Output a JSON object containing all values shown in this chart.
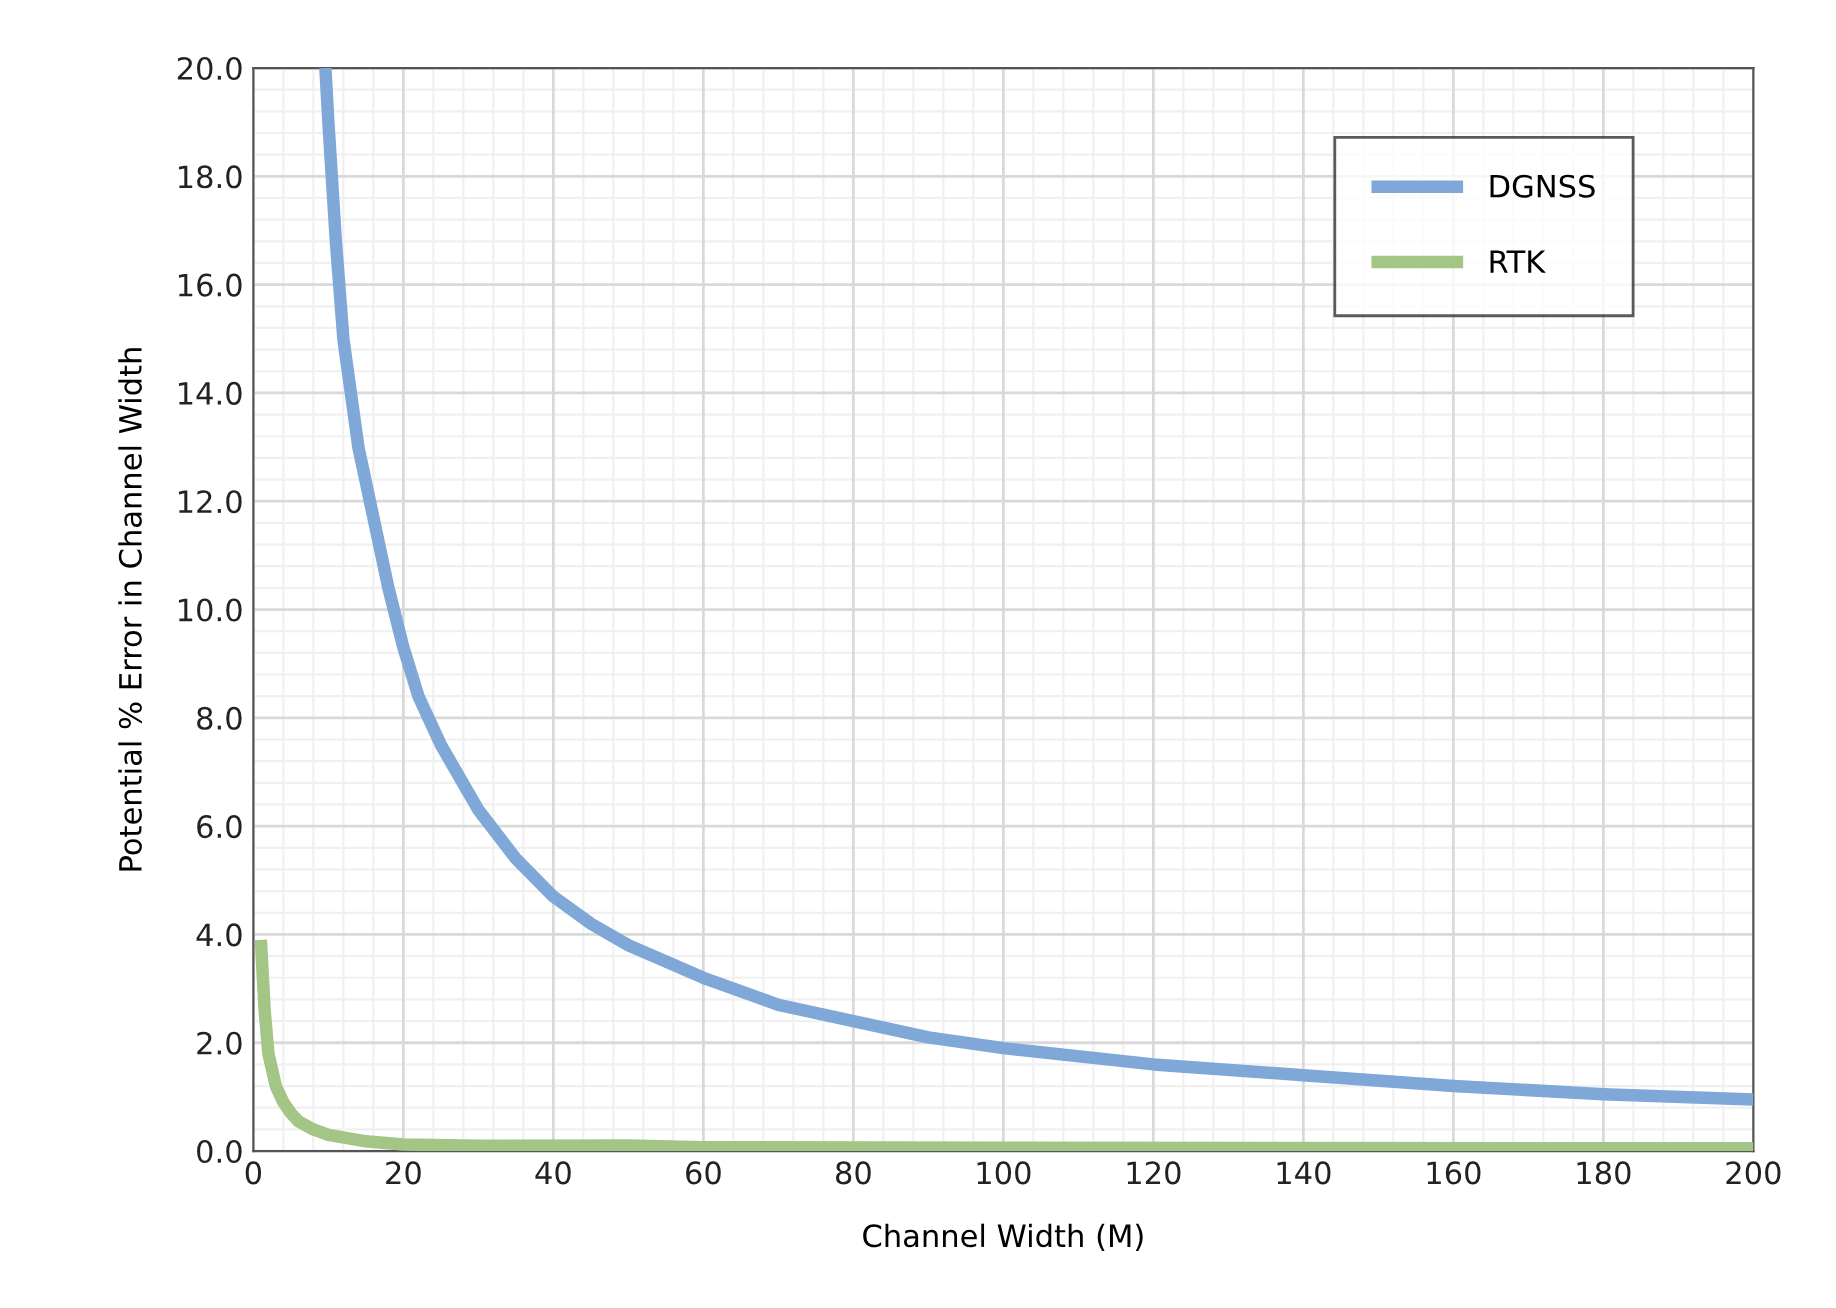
{
  "chart_data": {
    "type": "line",
    "xlabel": "Channel Width (M)",
    "ylabel": "Potential % Error in Channel Width",
    "xlim": [
      0,
      200
    ],
    "xticks": [
      0,
      20,
      40,
      60,
      80,
      100,
      120,
      140,
      160,
      180,
      200
    ],
    "ylim": [
      0,
      20
    ],
    "yticks": [
      {
        "value": 0,
        "label": "0.0"
      },
      {
        "value": 2,
        "label": "2.0"
      },
      {
        "value": 4,
        "label": "4.0"
      },
      {
        "value": 6,
        "label": "6.0"
      },
      {
        "value": 8,
        "label": "8.0"
      },
      {
        "value": 10,
        "label": "10.0"
      },
      {
        "value": 12,
        "label": "12.0"
      },
      {
        "value": 14,
        "label": "14.0"
      },
      {
        "value": 16,
        "label": "16.0"
      },
      {
        "value": 18,
        "label": "18.0"
      },
      {
        "value": 20,
        "label": "20.0"
      }
    ],
    "grid": true,
    "legend": "top right",
    "marker": "none",
    "line_style": "solid",
    "series": [
      {
        "name": "DGNSS",
        "color": "#7fa7d8",
        "x": [
          9.6,
          10,
          11,
          12,
          14,
          16,
          18,
          20,
          22,
          25,
          30,
          35,
          40,
          45,
          50,
          60,
          70,
          80,
          90,
          100,
          120,
          140,
          160,
          180,
          200
        ],
        "values": [
          20.0,
          19.0,
          16.8,
          15.0,
          13.0,
          11.7,
          10.4,
          9.3,
          8.4,
          7.5,
          6.3,
          5.4,
          4.7,
          4.2,
          3.8,
          3.2,
          2.7,
          2.4,
          2.1,
          1.9,
          1.6,
          1.4,
          1.2,
          1.05,
          0.95
        ]
      },
      {
        "name": "RTK",
        "color": "#a3c585",
        "x": [
          1,
          1.5,
          2,
          3,
          4,
          5,
          6,
          8,
          10,
          15,
          20,
          30,
          50,
          60,
          100,
          200
        ],
        "values": [
          3.9,
          2.6,
          1.8,
          1.2,
          0.9,
          0.7,
          0.55,
          0.4,
          0.3,
          0.18,
          0.12,
          0.1,
          0.1,
          0.07,
          0.06,
          0.05
        ]
      }
    ]
  }
}
